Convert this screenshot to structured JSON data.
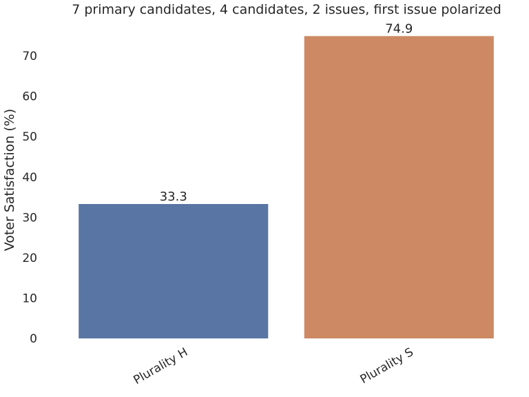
{
  "chart_data": {
    "type": "bar",
    "title": "7 primary candidates, 4 candidates, 2 issues, first issue polarized",
    "xlabel": "",
    "ylabel": "Voter Satisfaction (%)",
    "categories": [
      "Plurality H",
      "Plurality S"
    ],
    "values": [
      33.3,
      74.9
    ],
    "data_labels": [
      "33.3",
      "74.9"
    ],
    "colors": [
      "#5975a4",
      "#cc8963"
    ],
    "ylim": [
      0,
      76.5
    ],
    "yticks": [
      0,
      10,
      20,
      30,
      40,
      50,
      60,
      70
    ],
    "grid": false,
    "legend": "none"
  }
}
